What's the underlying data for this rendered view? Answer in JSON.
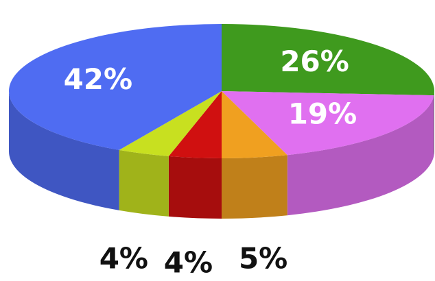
{
  "chart_data": {
    "type": "pie3d",
    "values": [
      26,
      19,
      5,
      4,
      4,
      42
    ],
    "value_labels": [
      "26%",
      "19%",
      "5%",
      "4%",
      "4%",
      "42%"
    ],
    "colors": [
      "#3f9a1e",
      "#e070f0",
      "#f0a020",
      "#d01010",
      "#c8e020",
      "#4f6cf2"
    ]
  }
}
